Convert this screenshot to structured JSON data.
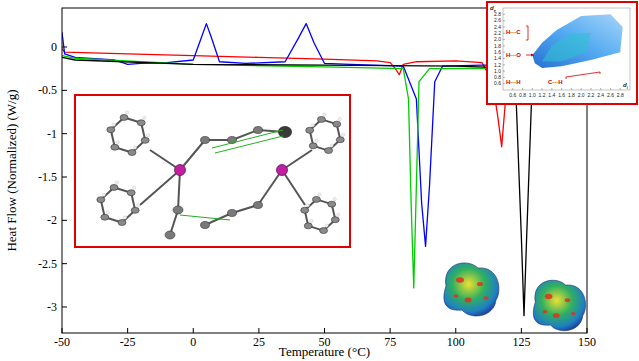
{
  "chart_data": {
    "type": "line",
    "x_label": "Temperature (°C)",
    "y_label": "Heat Flow (Normalized) (W/g)",
    "xlim": [
      -50,
      150
    ],
    "xticks": [
      -50,
      -25,
      0,
      25,
      50,
      75,
      100,
      125,
      150
    ],
    "ylim": [
      -3.3,
      0.45
    ],
    "yticks": [
      0,
      -0.5,
      -1,
      -1.5,
      -2,
      -2.5,
      -3
    ],
    "grid": false,
    "series": [
      {
        "color": "#ff0000",
        "line_style": "solid",
        "x": [
          -50,
          -49,
          -25,
          0,
          25,
          50,
          70,
          75,
          77,
          78.5,
          80,
          85,
          100,
          110,
          114,
          116,
          117.5,
          119,
          121,
          125,
          150
        ],
        "values": [
          -0.02,
          -0.06,
          -0.08,
          -0.1,
          -0.12,
          -0.14,
          -0.16,
          -0.18,
          -0.25,
          -0.32,
          -0.2,
          -0.17,
          -0.16,
          -0.18,
          -0.4,
          -0.8,
          -1.15,
          -0.6,
          -0.2,
          -0.15,
          -0.15
        ]
      },
      {
        "color": "#0000ff",
        "line_style": "solid",
        "x": [
          -50,
          -49,
          -45,
          -30,
          -25,
          -20,
          -10,
          0,
          3,
          5,
          7,
          10,
          20,
          35,
          40,
          43,
          46,
          50,
          60,
          80,
          85,
          87,
          88.5,
          90,
          92,
          95,
          110,
          150
        ],
        "values": [
          0.17,
          -0.08,
          -0.12,
          -0.15,
          -0.2,
          -0.19,
          -0.18,
          -0.15,
          0.1,
          0.27,
          0.1,
          -0.17,
          -0.19,
          -0.17,
          0.1,
          0.27,
          0.05,
          -0.19,
          -0.2,
          -0.22,
          -0.6,
          -1.8,
          -2.3,
          -1.6,
          -0.4,
          -0.22,
          -0.21,
          -0.21
        ]
      },
      {
        "color": "#00cc00",
        "line_style": "solid",
        "x": [
          -50,
          -45,
          0,
          50,
          80,
          82,
          83,
          84,
          85,
          86,
          90,
          150
        ],
        "values": [
          -0.1,
          -0.13,
          -0.2,
          -0.23,
          -0.25,
          -0.6,
          -1.8,
          -2.78,
          -1.6,
          -0.4,
          -0.25,
          -0.24
        ]
      },
      {
        "color": "#000000",
        "line_style": "solid",
        "x": [
          -50,
          -45,
          0,
          50,
          100,
          120,
          123,
          125,
          126,
          127,
          129,
          132,
          150
        ],
        "values": [
          -0.12,
          -0.15,
          -0.2,
          -0.21,
          -0.22,
          -0.24,
          -0.6,
          -2.2,
          -3.1,
          -2.2,
          -0.5,
          -0.22,
          -0.2
        ]
      }
    ]
  },
  "fingerprint_inset": {
    "x_label": {
      "text": "d",
      "subscript": "i"
    },
    "y_label": {
      "text": "d",
      "subscript": "e"
    },
    "xlim": [
      0.4,
      3.0
    ],
    "ylim": [
      0.4,
      3.0
    ],
    "xticks": [
      0.6,
      0.8,
      {
        "value": 1,
        "label": "1.0"
      },
      1.2,
      1.4,
      1.6,
      1.8,
      {
        "value": 2,
        "label": "2.0"
      },
      2.2,
      2.4,
      2.6,
      2.8
    ],
    "yticks": [
      0.6,
      0.8,
      {
        "value": 1,
        "label": "1.0"
      },
      1.2,
      1.4,
      1.6,
      1.8,
      {
        "value": 2,
        "label": "2.0"
      },
      2.2,
      2.4,
      2.6,
      2.8
    ],
    "labels": [
      "H···C",
      "H···O",
      "H···H",
      "C···H"
    ]
  }
}
